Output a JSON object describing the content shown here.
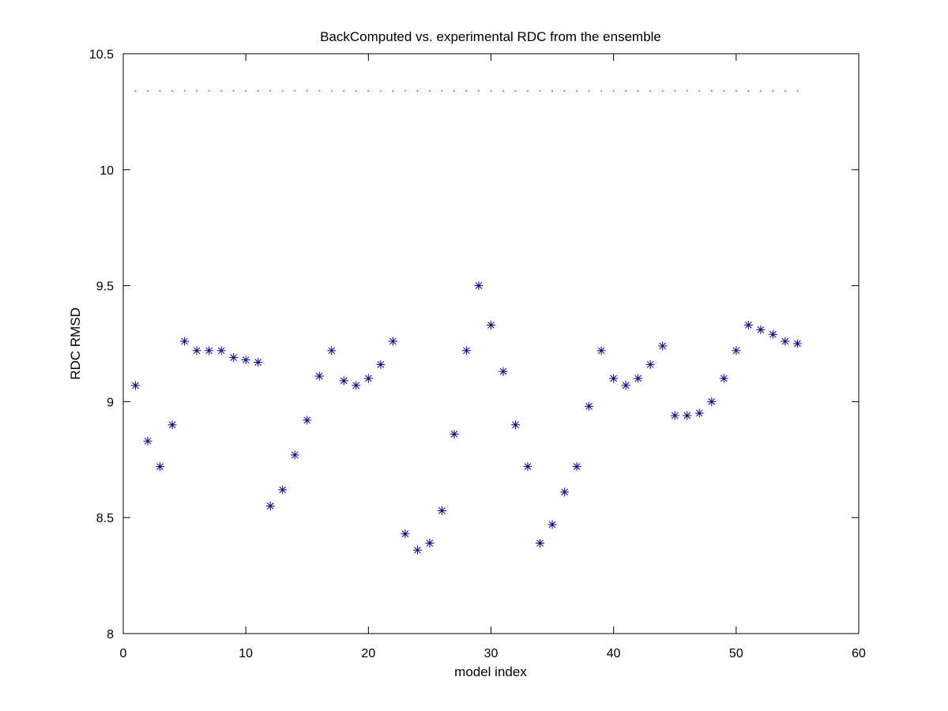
{
  "chart_data": {
    "type": "scatter",
    "title": "BackComputed vs. experimental RDC from the ensemble",
    "xlabel": "model index",
    "ylabel": "RDC RMSD",
    "xlim": [
      0,
      60
    ],
    "ylim": [
      8,
      10.5
    ],
    "xticks": [
      0,
      10,
      20,
      30,
      40,
      50,
      60
    ],
    "yticks": [
      8,
      8.5,
      9,
      9.5,
      10,
      10.5
    ],
    "grid": false,
    "colors": {
      "points": "#00008b",
      "reference": "#ff0000"
    },
    "series": [
      {
        "marker": "asterisk",
        "x": [
          1,
          2,
          3,
          4,
          5,
          6,
          7,
          8,
          9,
          10,
          11,
          12,
          13,
          14,
          15,
          16,
          17,
          18,
          19,
          20,
          21,
          22,
          23,
          24,
          25,
          26,
          27,
          28,
          29,
          30,
          31,
          32,
          33,
          34,
          35,
          36,
          37,
          38,
          39,
          40,
          41,
          42,
          43,
          44,
          45,
          46,
          47,
          48,
          49,
          50,
          51,
          52,
          53,
          54,
          55
        ],
        "y": [
          9.07,
          8.83,
          8.72,
          8.9,
          9.26,
          9.22,
          9.22,
          9.22,
          9.19,
          9.18,
          9.17,
          8.55,
          8.62,
          8.77,
          8.92,
          9.11,
          9.22,
          9.09,
          9.07,
          9.1,
          9.16,
          9.26,
          8.43,
          8.36,
          8.39,
          8.53,
          8.86,
          9.22,
          9.5,
          9.33,
          9.13,
          8.9,
          8.72,
          8.39,
          8.47,
          8.61,
          8.72,
          8.98,
          9.22,
          9.1,
          9.07,
          9.1,
          9.16,
          9.24,
          8.94,
          8.94,
          8.95,
          9.0,
          9.1,
          9.22,
          9.33,
          9.31,
          9.29,
          9.26,
          9.25
        ]
      },
      {
        "marker": "dot",
        "x": [
          1,
          2,
          3,
          4,
          5,
          6,
          7,
          8,
          9,
          10,
          11,
          12,
          13,
          14,
          15,
          16,
          17,
          18,
          19,
          20,
          21,
          22,
          23,
          24,
          25,
          26,
          27,
          28,
          29,
          30,
          31,
          32,
          33,
          34,
          35,
          36,
          37,
          38,
          39,
          40,
          41,
          42,
          43,
          44,
          45,
          46,
          47,
          48,
          49,
          50,
          51,
          52,
          53,
          54,
          55
        ],
        "y": [
          10.34,
          10.34,
          10.34,
          10.34,
          10.34,
          10.34,
          10.34,
          10.34,
          10.34,
          10.34,
          10.34,
          10.34,
          10.34,
          10.34,
          10.34,
          10.34,
          10.34,
          10.34,
          10.34,
          10.34,
          10.34,
          10.34,
          10.34,
          10.34,
          10.34,
          10.34,
          10.34,
          10.34,
          10.34,
          10.34,
          10.34,
          10.34,
          10.34,
          10.34,
          10.34,
          10.34,
          10.34,
          10.34,
          10.34,
          10.34,
          10.34,
          10.34,
          10.34,
          10.34,
          10.34,
          10.34,
          10.34,
          10.34,
          10.34,
          10.34,
          10.34,
          10.34,
          10.34,
          10.34,
          10.34
        ]
      }
    ]
  }
}
